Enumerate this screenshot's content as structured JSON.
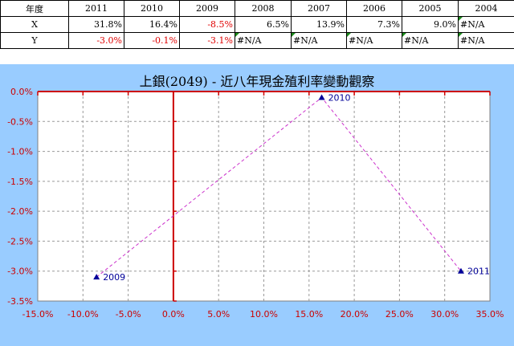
{
  "table": {
    "header": [
      "年度",
      "2011",
      "2010",
      "2009",
      "2008",
      "2007",
      "2006",
      "2005",
      "2004"
    ],
    "rows": [
      {
        "label": "X",
        "cells": [
          "31.8%",
          "16.4%",
          "-8.5%",
          "6.5%",
          "13.9%",
          "7.3%",
          "9.0%",
          "#N/A"
        ]
      },
      {
        "label": "Y",
        "cells": [
          "-3.0%",
          "-0.1%",
          "-3.1%",
          "#N/A",
          "#N/A",
          "#N/A",
          "#N/A",
          "#N/A"
        ]
      }
    ]
  },
  "chart_data": {
    "type": "scatter",
    "title": "上銀(2049) - 近八年現金殖利率變動觀察",
    "xlim": [
      -15.0,
      35.0
    ],
    "ylim": [
      -3.5,
      0.0
    ],
    "x_ticks": [
      "-15.0%",
      "-10.0%",
      "-5.0%",
      "0.0%",
      "5.0%",
      "10.0%",
      "15.0%",
      "20.0%",
      "25.0%",
      "30.0%",
      "35.0%"
    ],
    "y_ticks": [
      "0.0%",
      "-0.5%",
      "-1.0%",
      "-1.5%",
      "-2.0%",
      "-2.5%",
      "-3.0%",
      "-3.5%"
    ],
    "grid": true,
    "connect_points": true,
    "points": [
      {
        "label": "2009",
        "x": -8.5,
        "y": -3.1
      },
      {
        "label": "2010",
        "x": 16.4,
        "y": -0.1
      },
      {
        "label": "2011",
        "x": 31.8,
        "y": -3.0
      }
    ],
    "colors": {
      "background": "#99ccff",
      "plot_area": "#ffffff",
      "axis": "#cc0000",
      "marker": "#000099",
      "line": "#cc33cc",
      "grid": "#999999"
    }
  }
}
